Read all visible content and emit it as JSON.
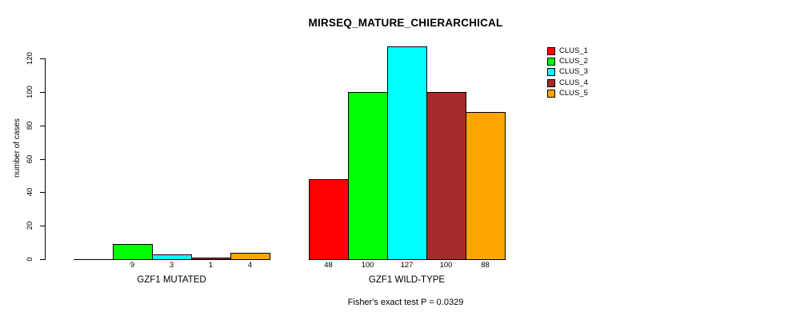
{
  "title": "MIRSEQ_MATURE_CHIERARCHICAL",
  "y_axis": {
    "label": "number of cases",
    "ticks": [
      "0",
      "20",
      "40",
      "60",
      "80",
      "100",
      "120"
    ]
  },
  "footer": "Fisher's exact test P = 0.0329",
  "legend": {
    "items": [
      {
        "label": "CLUS_1",
        "color": "#FF0000"
      },
      {
        "label": "CLUS_2",
        "color": "#00FF00"
      },
      {
        "label": "CLUS_3",
        "color": "#00FFFF"
      },
      {
        "label": "CLUS_4",
        "color": "#A52A2A"
      },
      {
        "label": "CLUS_5",
        "color": "#FFA500"
      }
    ]
  },
  "chart_data": {
    "type": "bar",
    "title": "MIRSEQ_MATURE_CHIERARCHICAL",
    "xlabel": "",
    "ylabel": "number of cases",
    "ylim": [
      0,
      127
    ],
    "yticks": [
      0,
      20,
      40,
      60,
      80,
      100,
      120
    ],
    "grid": false,
    "legend_position": "right-outside",
    "series_names": [
      "CLUS_1",
      "CLUS_2",
      "CLUS_3",
      "CLUS_4",
      "CLUS_5"
    ],
    "series_colors": [
      "#FF0000",
      "#00FF00",
      "#00FFFF",
      "#A52A2A",
      "#FFA500"
    ],
    "groups": [
      {
        "label": "GZF1 MUTATED",
        "values": [
          0,
          9,
          3,
          1,
          4
        ],
        "bar_labels": [
          "",
          "9",
          "3",
          "1",
          "4"
        ]
      },
      {
        "label": "GZF1 WILD-TYPE",
        "values": [
          48,
          100,
          127,
          100,
          88
        ],
        "bar_labels": [
          "48",
          "100",
          "127",
          "100",
          "88"
        ]
      }
    ],
    "annotation": "Fisher's exact test P = 0.0329"
  }
}
